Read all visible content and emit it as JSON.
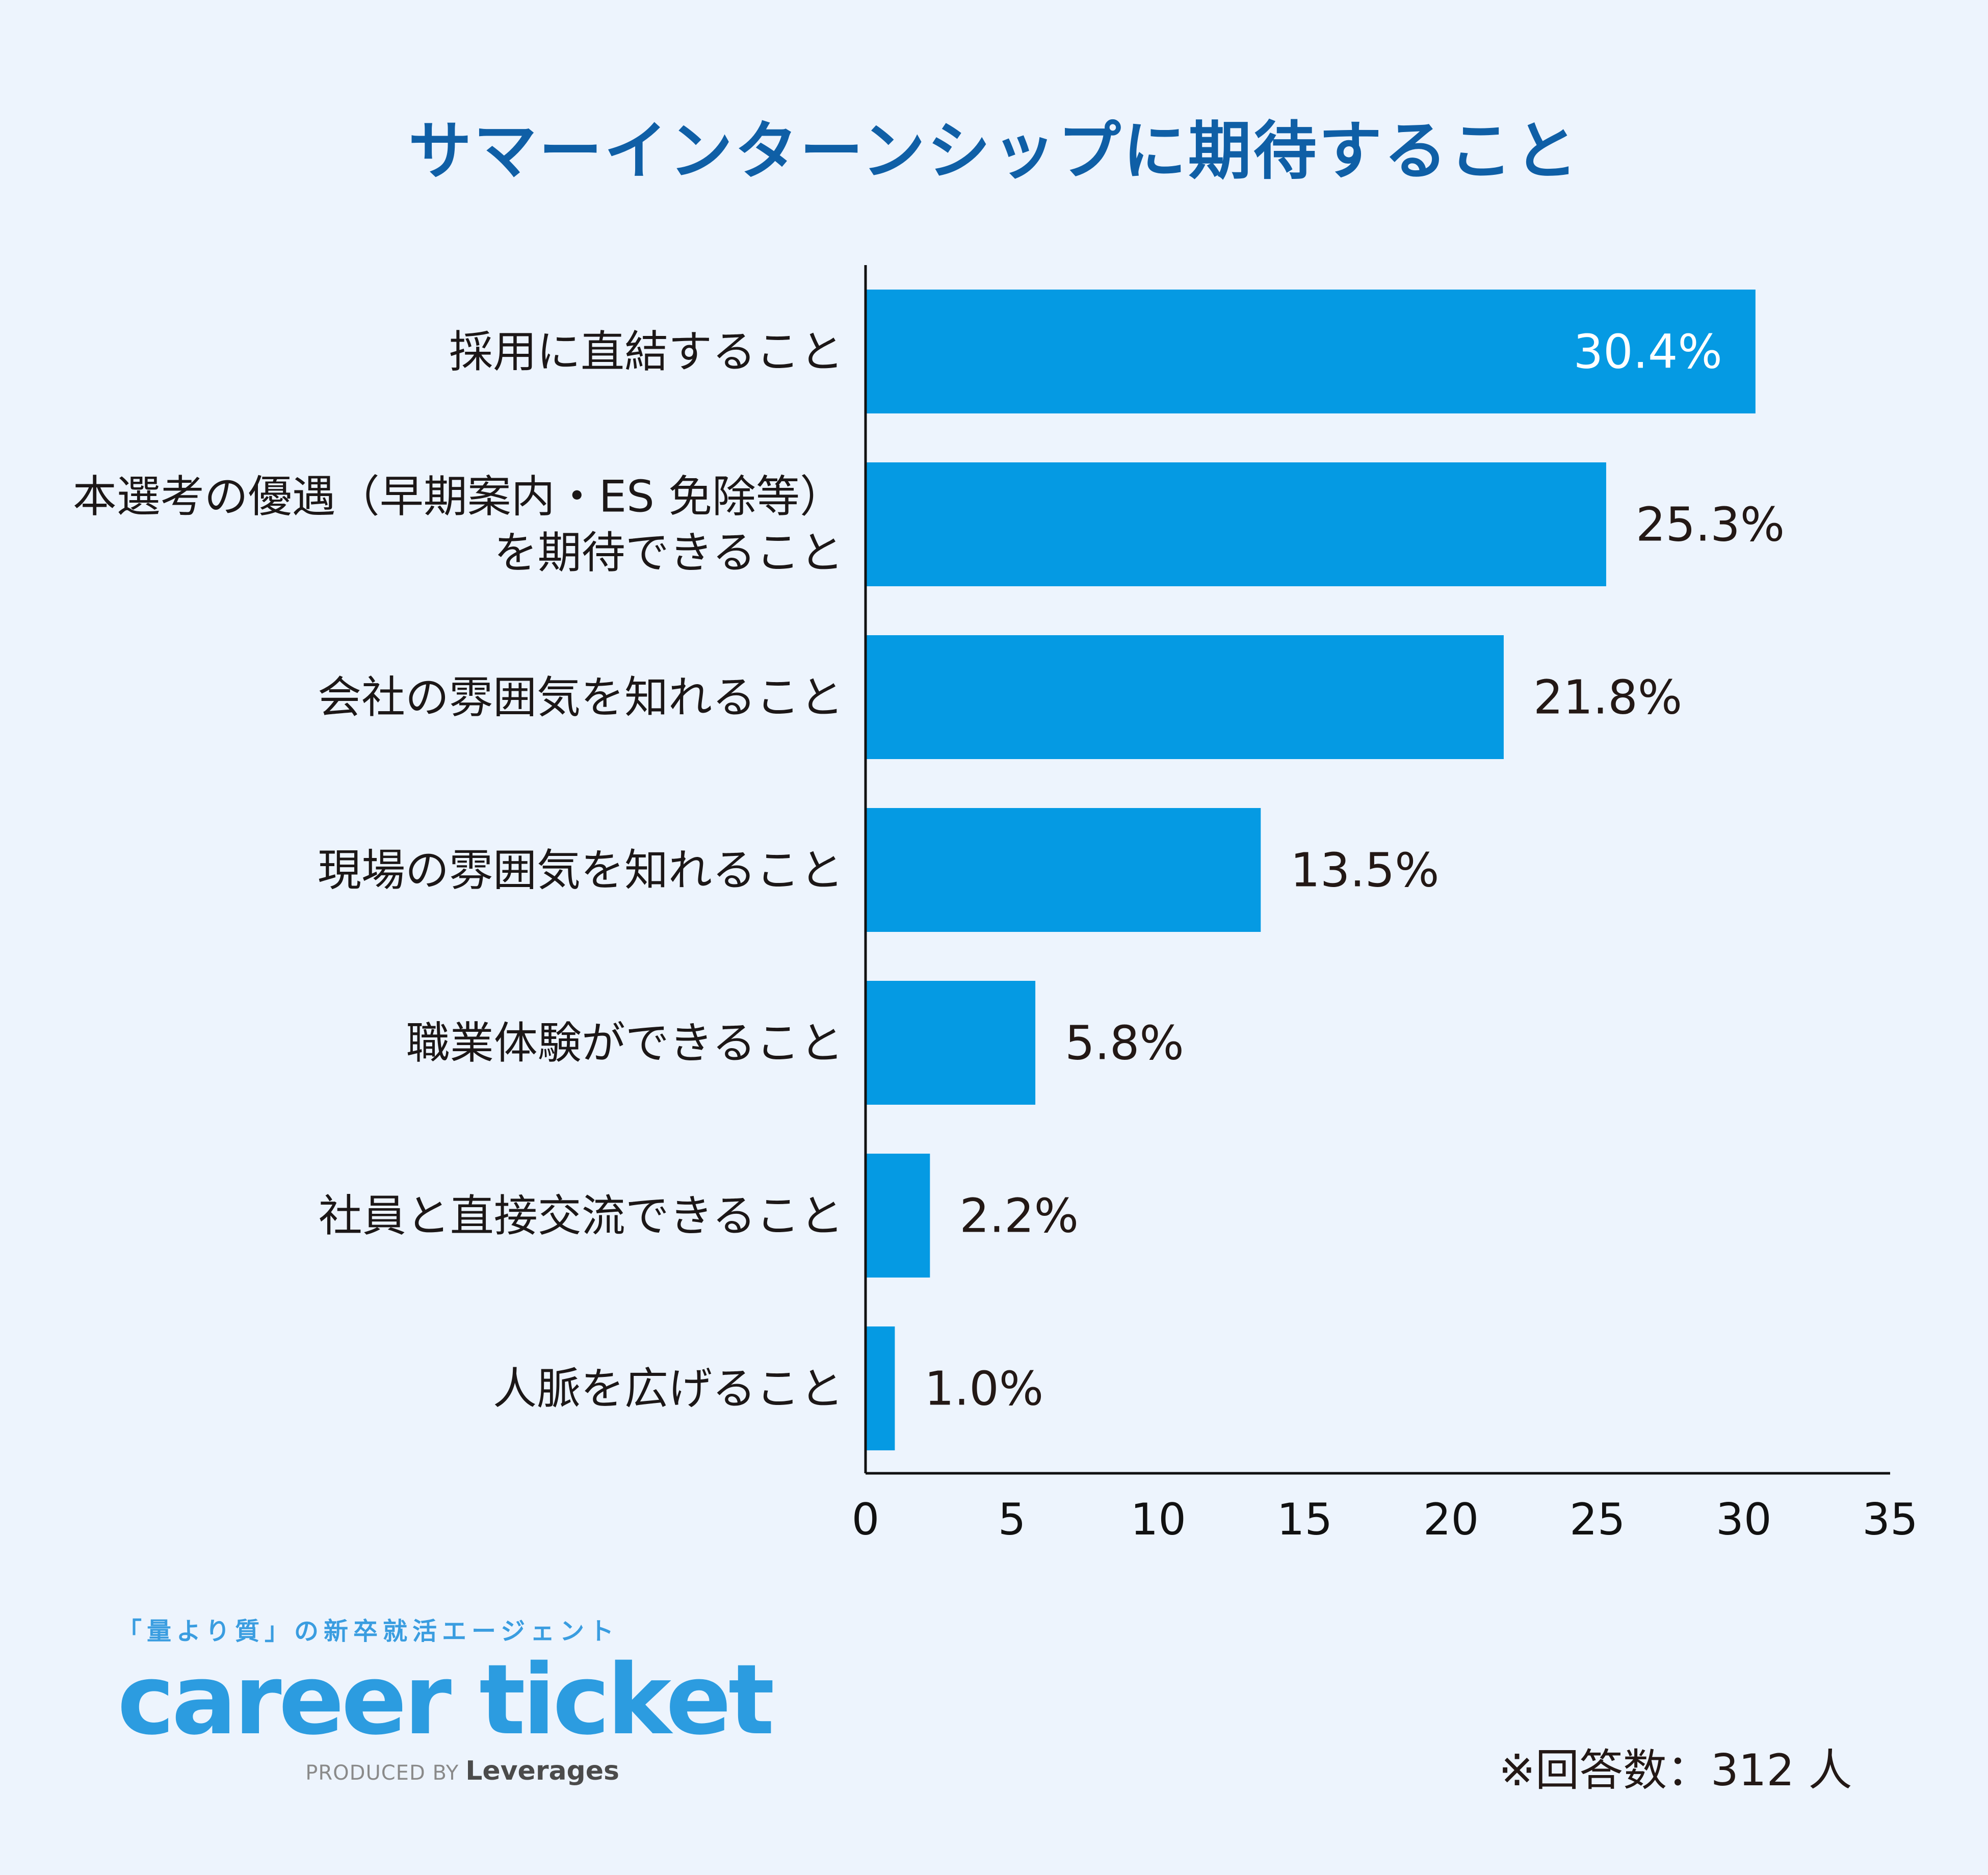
{
  "chart_data": {
    "type": "bar",
    "orientation": "horizontal",
    "title": "サマーインターンシップに期待すること",
    "categories": [
      [
        "採用に直結すること"
      ],
      [
        "本選考の優遇（早期案内・ES 免除等）",
        "を期待できること"
      ],
      [
        "会社の雰囲気を知れること"
      ],
      [
        "現場の雰囲気を知れること"
      ],
      [
        "職業体験ができること"
      ],
      [
        "社員と直接交流できること"
      ],
      [
        "人脈を広げること"
      ]
    ],
    "values": [
      30.4,
      25.3,
      21.8,
      13.5,
      5.8,
      2.2,
      1.0
    ],
    "value_labels": [
      "30.4%",
      "25.3%",
      "21.8%",
      "13.5%",
      "5.8%",
      "2.2%",
      "1.0%"
    ],
    "xlim": [
      0,
      35
    ],
    "xticks": [
      0,
      5,
      10,
      15,
      20,
      25,
      30,
      35
    ],
    "xlabel": "",
    "ylabel": "",
    "grid": false,
    "bar_color": "#059ae3"
  },
  "brand": {
    "tagline": "「量より質」の新卒就活エージェント",
    "logo_text": "career ticket",
    "produced_by": "PRODUCED BY",
    "company": "Leverages"
  },
  "footnote": {
    "respondents": "※回答数：312 人"
  },
  "colors": {
    "title": "#0f5fa6",
    "background": "#edf4fd",
    "bar": "#059ae3",
    "brand": "#2c9ce0"
  }
}
